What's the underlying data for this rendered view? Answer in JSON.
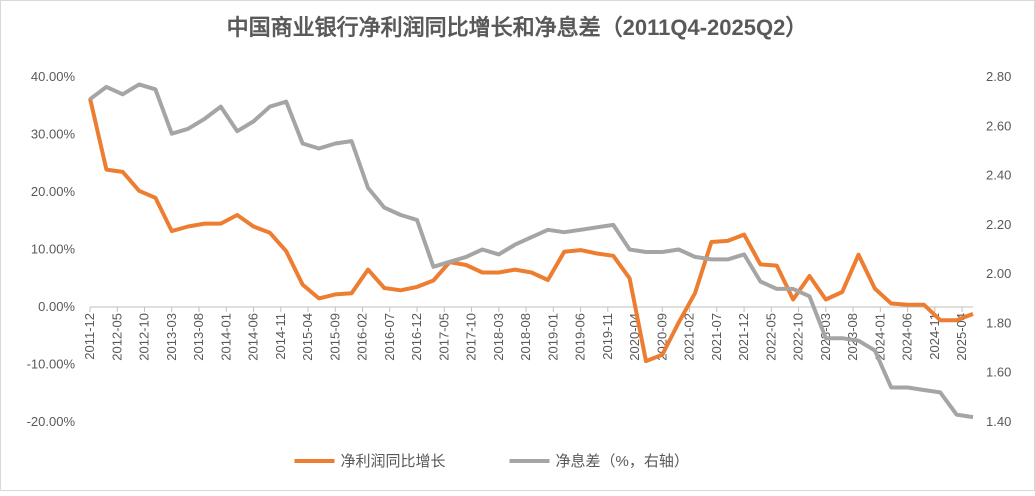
{
  "chart_data": {
    "type": "line",
    "title": "中国商业银行净利润同比增长和净息差（2011Q4-2025Q2）",
    "x": [
      "2011-12",
      "2012-03",
      "2012-06",
      "2012-09",
      "2012-12",
      "2013-03",
      "2013-06",
      "2013-09",
      "2013-12",
      "2014-03",
      "2014-06",
      "2014-09",
      "2014-12",
      "2015-03",
      "2015-06",
      "2015-09",
      "2015-12",
      "2016-03",
      "2016-06",
      "2016-09",
      "2016-12",
      "2017-03",
      "2017-06",
      "2017-09",
      "2017-12",
      "2018-03",
      "2018-06",
      "2018-09",
      "2018-12",
      "2019-03",
      "2019-06",
      "2019-09",
      "2019-12",
      "2020-03",
      "2020-06",
      "2020-09",
      "2020-12",
      "2021-03",
      "2021-06",
      "2021-09",
      "2021-12",
      "2022-03",
      "2022-06",
      "2022-09",
      "2022-12",
      "2023-03",
      "2023-06",
      "2023-09",
      "2023-12",
      "2024-03",
      "2024-06",
      "2024-09",
      "2024-12",
      "2025-03",
      "2025-06"
    ],
    "xlim": [
      "2011-12",
      "2025-06"
    ],
    "xticks": [
      "2011-12",
      "2012-05",
      "2012-10",
      "2013-03",
      "2013-08",
      "2014-01",
      "2014-06",
      "2014-11",
      "2015-04",
      "2015-09",
      "2016-02",
      "2016-07",
      "2016-12",
      "2017-05",
      "2017-10",
      "2018-03",
      "2018-08",
      "2019-01",
      "2019-06",
      "2019-11",
      "2020-04",
      "2020-09",
      "2021-02",
      "2021-07",
      "2021-12",
      "2022-05",
      "2022-10",
      "2023-03",
      "2023-08",
      "2024-01",
      "2024-06",
      "2024-11",
      "2025-04"
    ],
    "series": [
      {
        "name": "净利润同比增长",
        "color": "#ed7d31",
        "axis": "y",
        "values": [
          36.3,
          23.9,
          23.5,
          20.2,
          19.0,
          13.2,
          14.0,
          14.5,
          14.5,
          16.0,
          14.0,
          12.9,
          9.7,
          3.9,
          1.5,
          2.2,
          2.4,
          6.5,
          3.3,
          2.9,
          3.5,
          4.6,
          7.8,
          7.3,
          6.0,
          6.0,
          6.5,
          6.0,
          4.7,
          9.6,
          9.9,
          9.3,
          8.9,
          5.0,
          -9.4,
          -8.3,
          -2.7,
          2.4,
          11.3,
          11.5,
          12.6,
          7.4,
          7.2,
          1.3,
          5.4,
          1.3,
          2.6,
          9.1,
          3.2,
          0.6,
          0.4,
          0.4,
          -2.3,
          -2.3,
          -1.2
        ]
      },
      {
        "name": "净息差（%，右轴）",
        "color": "#a5a5a5",
        "axis": "y2",
        "values": [
          2.71,
          2.76,
          2.73,
          2.77,
          2.75,
          2.57,
          2.59,
          2.63,
          2.68,
          2.58,
          2.62,
          2.68,
          2.7,
          2.53,
          2.51,
          2.53,
          2.54,
          2.35,
          2.27,
          2.24,
          2.22,
          2.03,
          2.05,
          2.07,
          2.1,
          2.08,
          2.12,
          2.15,
          2.18,
          2.17,
          2.18,
          2.19,
          2.2,
          2.1,
          2.09,
          2.09,
          2.1,
          2.07,
          2.06,
          2.06,
          2.08,
          1.97,
          1.94,
          1.94,
          1.91,
          1.74,
          1.74,
          1.73,
          1.69,
          1.54,
          1.54,
          1.53,
          1.52,
          1.43,
          1.42
        ]
      }
    ],
    "ylim": [
      -20,
      40
    ],
    "yticks": [
      {
        "value": -20,
        "label": "-20.00%"
      },
      {
        "value": -10,
        "label": "-10.00%"
      },
      {
        "value": 0,
        "label": "0.00%"
      },
      {
        "value": 10,
        "label": "10.00%"
      },
      {
        "value": 20,
        "label": "20.00%"
      },
      {
        "value": 30,
        "label": "30.00%"
      },
      {
        "value": 40,
        "label": "40.00%"
      }
    ],
    "y2lim": [
      1.4,
      2.8
    ],
    "y2ticks": [
      {
        "value": 1.4,
        "label": "1.40"
      },
      {
        "value": 1.6,
        "label": "1.60"
      },
      {
        "value": 1.8,
        "label": "1.80"
      },
      {
        "value": 2.0,
        "label": "2.00"
      },
      {
        "value": 2.2,
        "label": "2.20"
      },
      {
        "value": 2.4,
        "label": "2.40"
      },
      {
        "value": 2.6,
        "label": "2.60"
      },
      {
        "value": 2.8,
        "label": "2.80"
      }
    ],
    "legend": "bottom"
  }
}
